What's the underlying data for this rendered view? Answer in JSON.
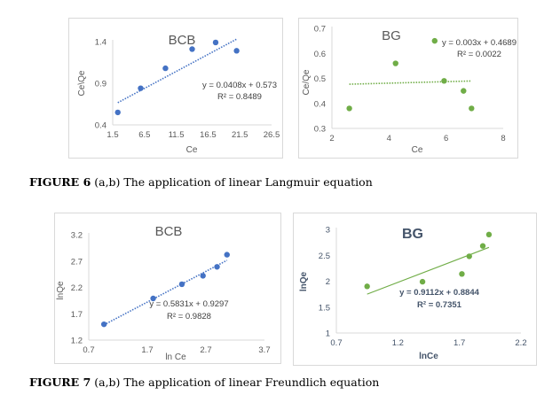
{
  "captions": {
    "fig6_label": "FIGURE 6",
    "fig6_text": " (a,b) The application of linear Langmuir equation",
    "fig7_label": "FIGURE 7",
    "fig7_text": " (a,b) The application of linear Freundlich equation"
  },
  "chart_data": [
    {
      "id": "fig6a",
      "type": "scatter",
      "title": "BCB",
      "xlabel": "Ce",
      "ylabel": "Ce\\Qe",
      "xlim": [
        1.5,
        26.5
      ],
      "ylim": [
        0.4,
        1.4
      ],
      "xticks": [
        "1.5",
        "6.5",
        "11.5",
        "16.5",
        "21.5",
        "26.5"
      ],
      "yticks": [
        "0.4",
        "0.9",
        "1.4"
      ],
      "grid": false,
      "color": "#4472c4",
      "x": [
        2.3,
        5.9,
        9.8,
        14.0,
        17.7,
        21.0
      ],
      "y": [
        0.55,
        0.84,
        1.08,
        1.31,
        1.39,
        1.29
      ],
      "trendline": {
        "style": "dotted",
        "slope": 0.0408,
        "intercept": 0.573,
        "x_range": [
          2.3,
          21.0
        ]
      },
      "equation": "y = 0.0408x + 0.573",
      "r2": "R² = 0.8489"
    },
    {
      "id": "fig6b",
      "type": "scatter",
      "title": "BG",
      "xlabel": "Ce",
      "ylabel": "Ce/Qe",
      "xlim": [
        2,
        8
      ],
      "ylim": [
        0.3,
        0.7
      ],
      "xticks": [
        "2",
        "4",
        "6",
        "8"
      ],
      "yticks": [
        "0.3",
        "0.4",
        "0.5",
        "0.6",
        "0.7"
      ],
      "grid": false,
      "color": "#70ad47",
      "x": [
        2.61,
        4.23,
        5.6,
        5.93,
        6.61,
        6.89
      ],
      "y": [
        0.38,
        0.56,
        0.65,
        0.49,
        0.45,
        0.38
      ],
      "trendline": {
        "style": "dotted",
        "slope": 0.003,
        "intercept": 0.4689,
        "x_range": [
          2.61,
          6.89
        ]
      },
      "equation": "y = 0.003x + 0.4689",
      "r2": "R² = 0.0022"
    },
    {
      "id": "fig7a",
      "type": "scatter",
      "title": "BCB",
      "xlabel": "ln Ce",
      "ylabel": "lnQe",
      "xlim": [
        0.7,
        3.7
      ],
      "ylim": [
        1.2,
        3.2
      ],
      "xticks": [
        "0.7",
        "1.7",
        "2.7",
        "3.7"
      ],
      "yticks": [
        "1.2",
        "1.7",
        "2.2",
        "2.7",
        "3.2"
      ],
      "grid": false,
      "color": "#4472c4",
      "x": [
        0.96,
        1.8,
        2.29,
        2.65,
        2.89,
        3.06
      ],
      "y": [
        1.5,
        1.99,
        2.26,
        2.42,
        2.59,
        2.82
      ],
      "trendline": {
        "style": "dotted",
        "slope": 0.5831,
        "intercept": 0.9297,
        "x_range": [
          0.96,
          3.06
        ]
      },
      "equation": "y = 0.5831x + 0.9297",
      "r2": "R² = 0.9828"
    },
    {
      "id": "fig7b",
      "type": "scatter",
      "title": "BG",
      "xlabel": "lnCe",
      "ylabel": "lnQe",
      "xlim": [
        0.7,
        2.2
      ],
      "ylim": [
        1,
        3
      ],
      "xticks": [
        "0.7",
        "1.2",
        "1.7",
        "2.2"
      ],
      "yticks": [
        "1",
        "1.5",
        "2",
        "2.5",
        "3"
      ],
      "grid": false,
      "color": "#70ad47",
      "x": [
        0.95,
        1.4,
        1.72,
        1.78,
        1.89,
        1.94
      ],
      "y": [
        1.9,
        1.99,
        2.14,
        2.48,
        2.68,
        2.9
      ],
      "trendline": {
        "style": "solid",
        "slope": 0.9112,
        "intercept": 0.8844,
        "x_range": [
          0.95,
          1.94
        ]
      },
      "equation": "y = 0.9112x + 0.8844",
      "r2": "R² = 0.7351"
    }
  ]
}
